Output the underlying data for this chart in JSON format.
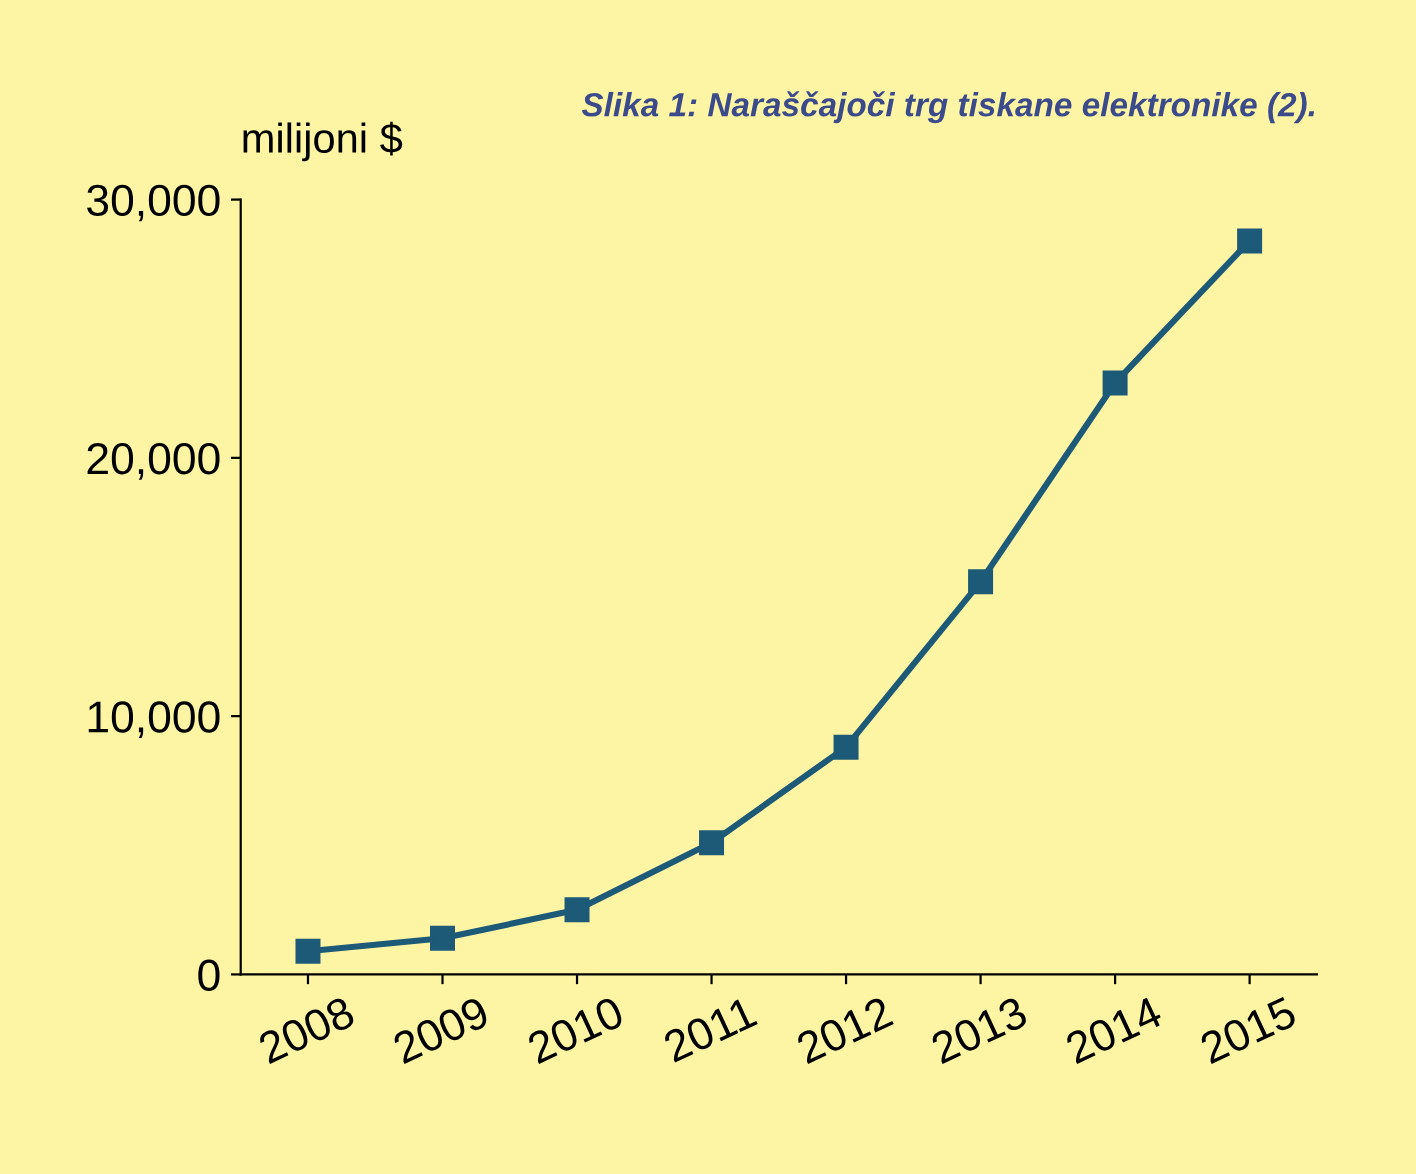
{
  "chart_data": {
    "type": "line",
    "title": "Slika 1: Naraščajoči trg tiskane elektronike (2).",
    "ylabel": "milijoni $",
    "categories": [
      "2008",
      "2009",
      "2010",
      "2011",
      "2012",
      "2013",
      "2014",
      "2015"
    ],
    "series": [
      {
        "color": "#1d5a78",
        "values": [
          900,
          1400,
          2500,
          5100,
          8800,
          15200,
          22900,
          28400
        ]
      }
    ],
    "ylim": [
      0,
      30000
    ],
    "yticks": [
      {
        "value": 0,
        "label": "0"
      },
      {
        "value": 10000,
        "label": "10,000"
      },
      {
        "value": 20000,
        "label": "20,000"
      },
      {
        "value": 30000,
        "label": "30,000"
      }
    ],
    "marker": "square",
    "line_style": "solid",
    "grid": false,
    "legend": false
  }
}
